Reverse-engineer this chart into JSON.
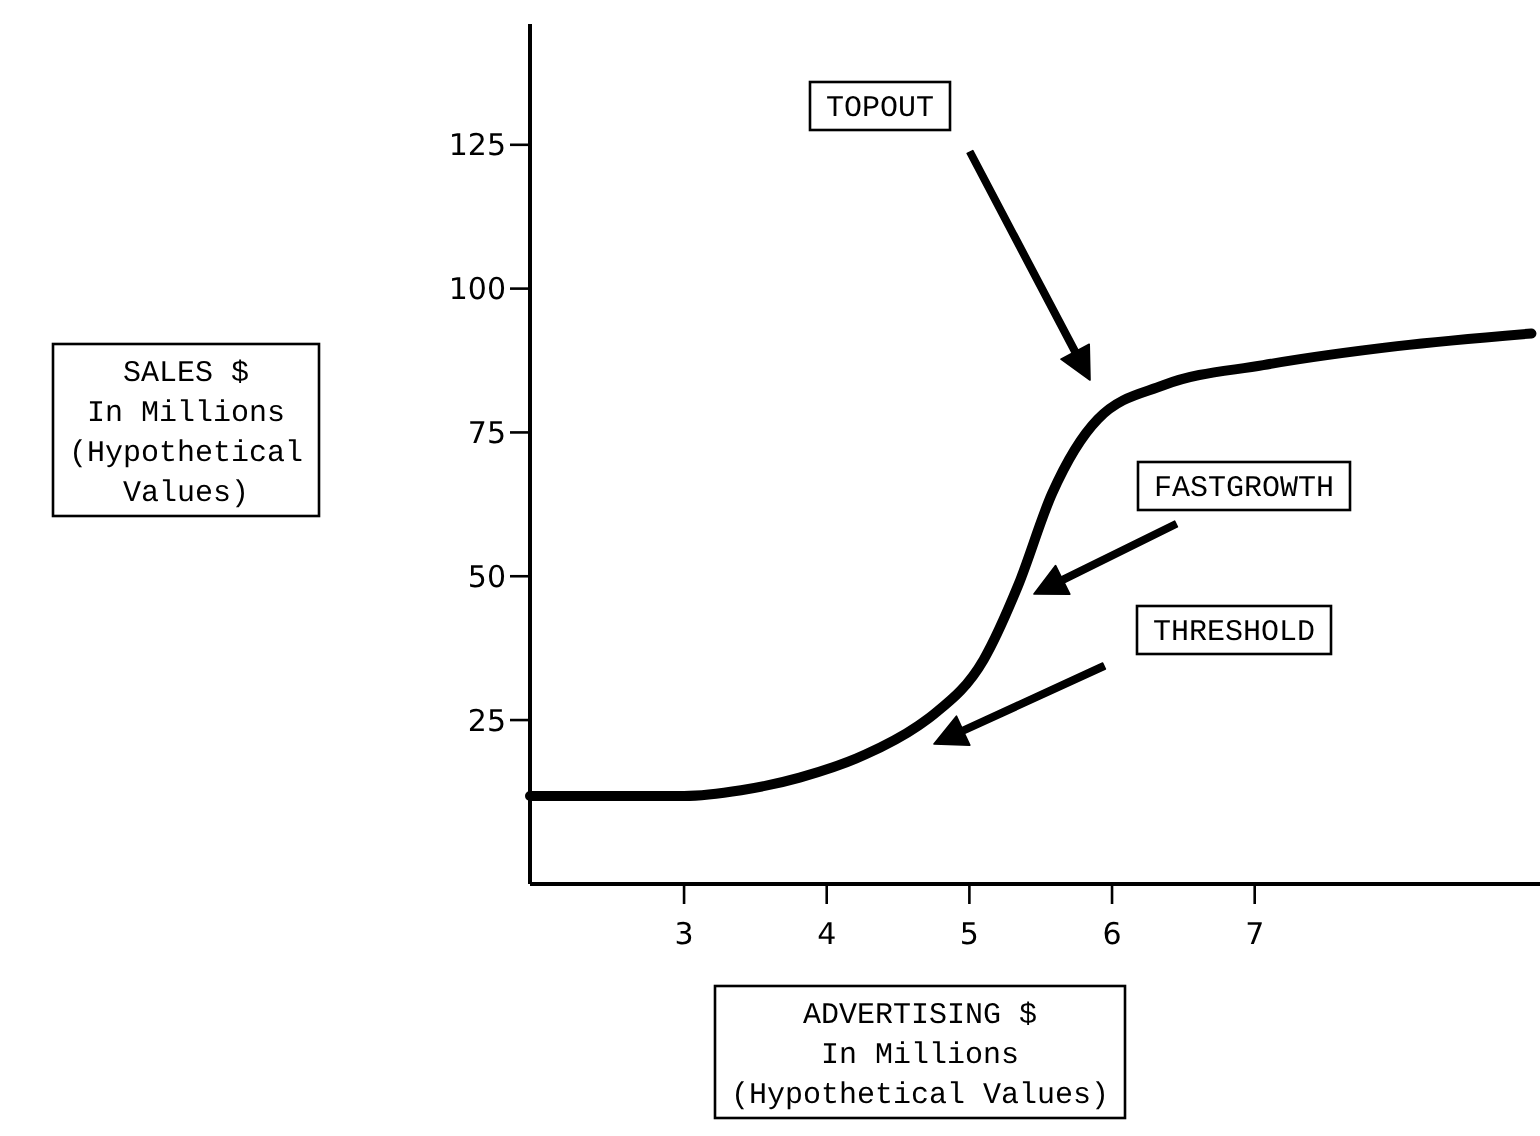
{
  "chart_data": {
    "type": "line",
    "xlabel": "ADVERTISING $\nIn Millions\n(Hypothetical Values)",
    "ylabel": "SALES $\nIn Millions\n(Hypothetical\nValues)",
    "xlim": [
      1.92,
      9
    ],
    "xticks": [
      3,
      4,
      5,
      6,
      7
    ],
    "ylim": [
      -3.5,
      146
    ],
    "yticks": [
      25,
      50,
      75,
      100,
      125
    ],
    "grid": false,
    "marker": "none",
    "line_style": "solid",
    "series": [
      {
        "color": "#000000",
        "x": [
          1.92,
          2.5,
          3.0,
          3.4,
          3.81,
          4.27,
          4.64,
          4.75,
          5.1,
          5.34,
          5.58,
          5.9,
          6.36,
          7.06,
          8.0,
          8.94
        ],
        "values": [
          11.8,
          11.8,
          11.8,
          12.8,
          15,
          19,
          24,
          26,
          35.5,
          48.3,
          64.4,
          77.3,
          83.2,
          86.7,
          90,
          92.2
        ]
      }
    ],
    "annotations": [
      "TOPOUT",
      "FASTGROWTH",
      "THRESHOLD"
    ]
  }
}
